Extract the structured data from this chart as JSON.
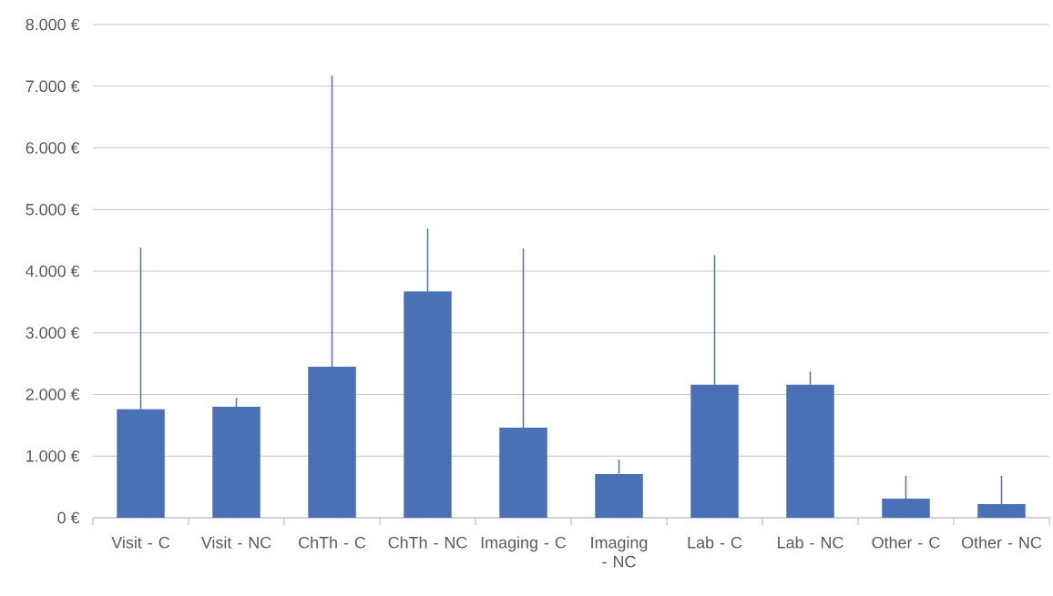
{
  "chart_data": {
    "type": "bar",
    "categories": [
      "Visit - C",
      "Visit - NC",
      "ChTh - C",
      "ChTh - NC",
      "Imaging - C",
      "Imaging - NC",
      "Lab - C",
      "Lab - NC",
      "Other - C",
      "Other - NC"
    ],
    "values": [
      1760,
      1800,
      2450,
      3670,
      1460,
      710,
      2160,
      2160,
      310,
      220
    ],
    "errors": [
      [
        1760,
        4380
      ],
      [
        1800,
        1940
      ],
      [
        2450,
        7170
      ],
      [
        3670,
        4690
      ],
      [
        1460,
        4370
      ],
      [
        710,
        940
      ],
      [
        2160,
        4260
      ],
      [
        2160,
        2370
      ],
      [
        310,
        680
      ],
      [
        220,
        680
      ]
    ],
    "color": "#4a70b5",
    "ylim": [
      0,
      8000
    ],
    "yticks": [
      {
        "value": 0,
        "label": "0 €"
      },
      {
        "value": 1000,
        "label": "1.000 €"
      },
      {
        "value": 2000,
        "label": "2.000 €"
      },
      {
        "value": 3000,
        "label": "3.000 €"
      },
      {
        "value": 4000,
        "label": "4.000 €"
      },
      {
        "value": 5000,
        "label": "5.000 €"
      },
      {
        "value": 6000,
        "label": "6.000 €"
      },
      {
        "value": 7000,
        "label": "7.000 €"
      },
      {
        "value": 8000,
        "label": "8.000 €"
      }
    ],
    "grid": "y"
  }
}
